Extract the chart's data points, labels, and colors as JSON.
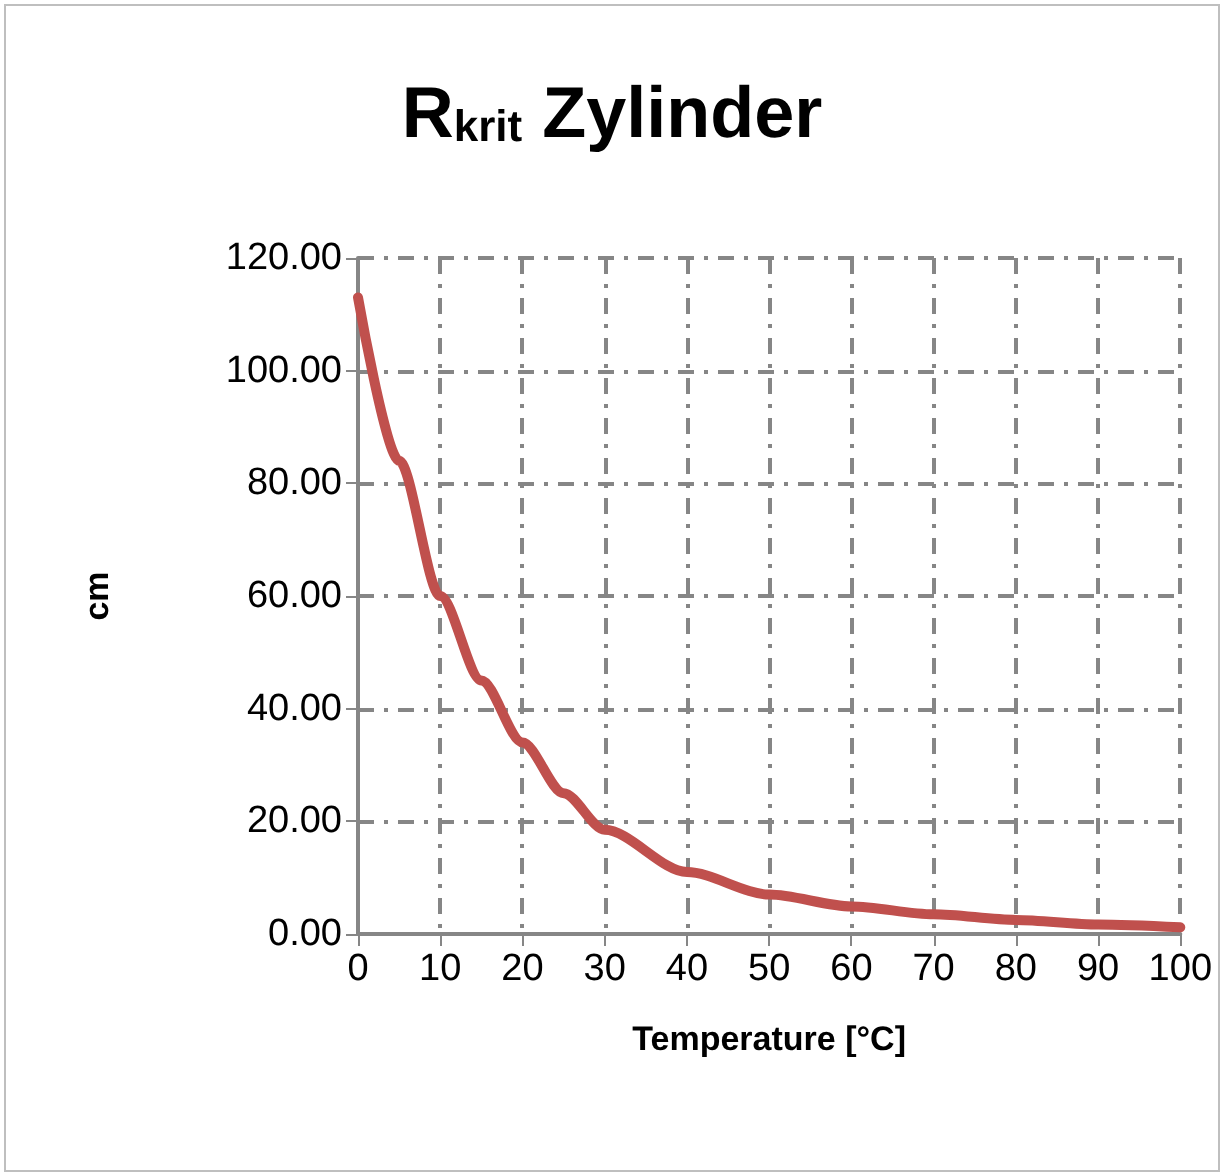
{
  "chart_data": {
    "type": "line",
    "title": "R$_{krit}$ Zylinder",
    "xlabel": "Temperature [°C]",
    "ylabel": "cm",
    "series": [
      {
        "color": "#c0504d",
        "x": [
          0,
          5,
          10,
          15,
          20,
          25,
          30,
          40,
          50,
          60,
          70,
          80,
          90,
          100
        ],
        "values": [
          113,
          84,
          60,
          45,
          34,
          25,
          18.5,
          11,
          7,
          4.9,
          3.5,
          2.5,
          1.7,
          1.2
        ]
      }
    ],
    "xlim": [
      0,
      100
    ],
    "xticks": [
      0,
      10,
      20,
      30,
      40,
      50,
      60,
      70,
      80,
      90,
      100
    ],
    "ylim": [
      0,
      120
    ],
    "yticks": [
      {
        "value": 0,
        "label": "0.00"
      },
      {
        "value": 20,
        "label": "20.00"
      },
      {
        "value": 40,
        "label": "40.00"
      },
      {
        "value": 60,
        "label": "60.00"
      },
      {
        "value": 80,
        "label": "80.00"
      },
      {
        "value": 100,
        "label": "100.00"
      },
      {
        "value": 120,
        "label": "120.00"
      }
    ],
    "grid": true,
    "marker": "none",
    "line_style": "solid"
  }
}
